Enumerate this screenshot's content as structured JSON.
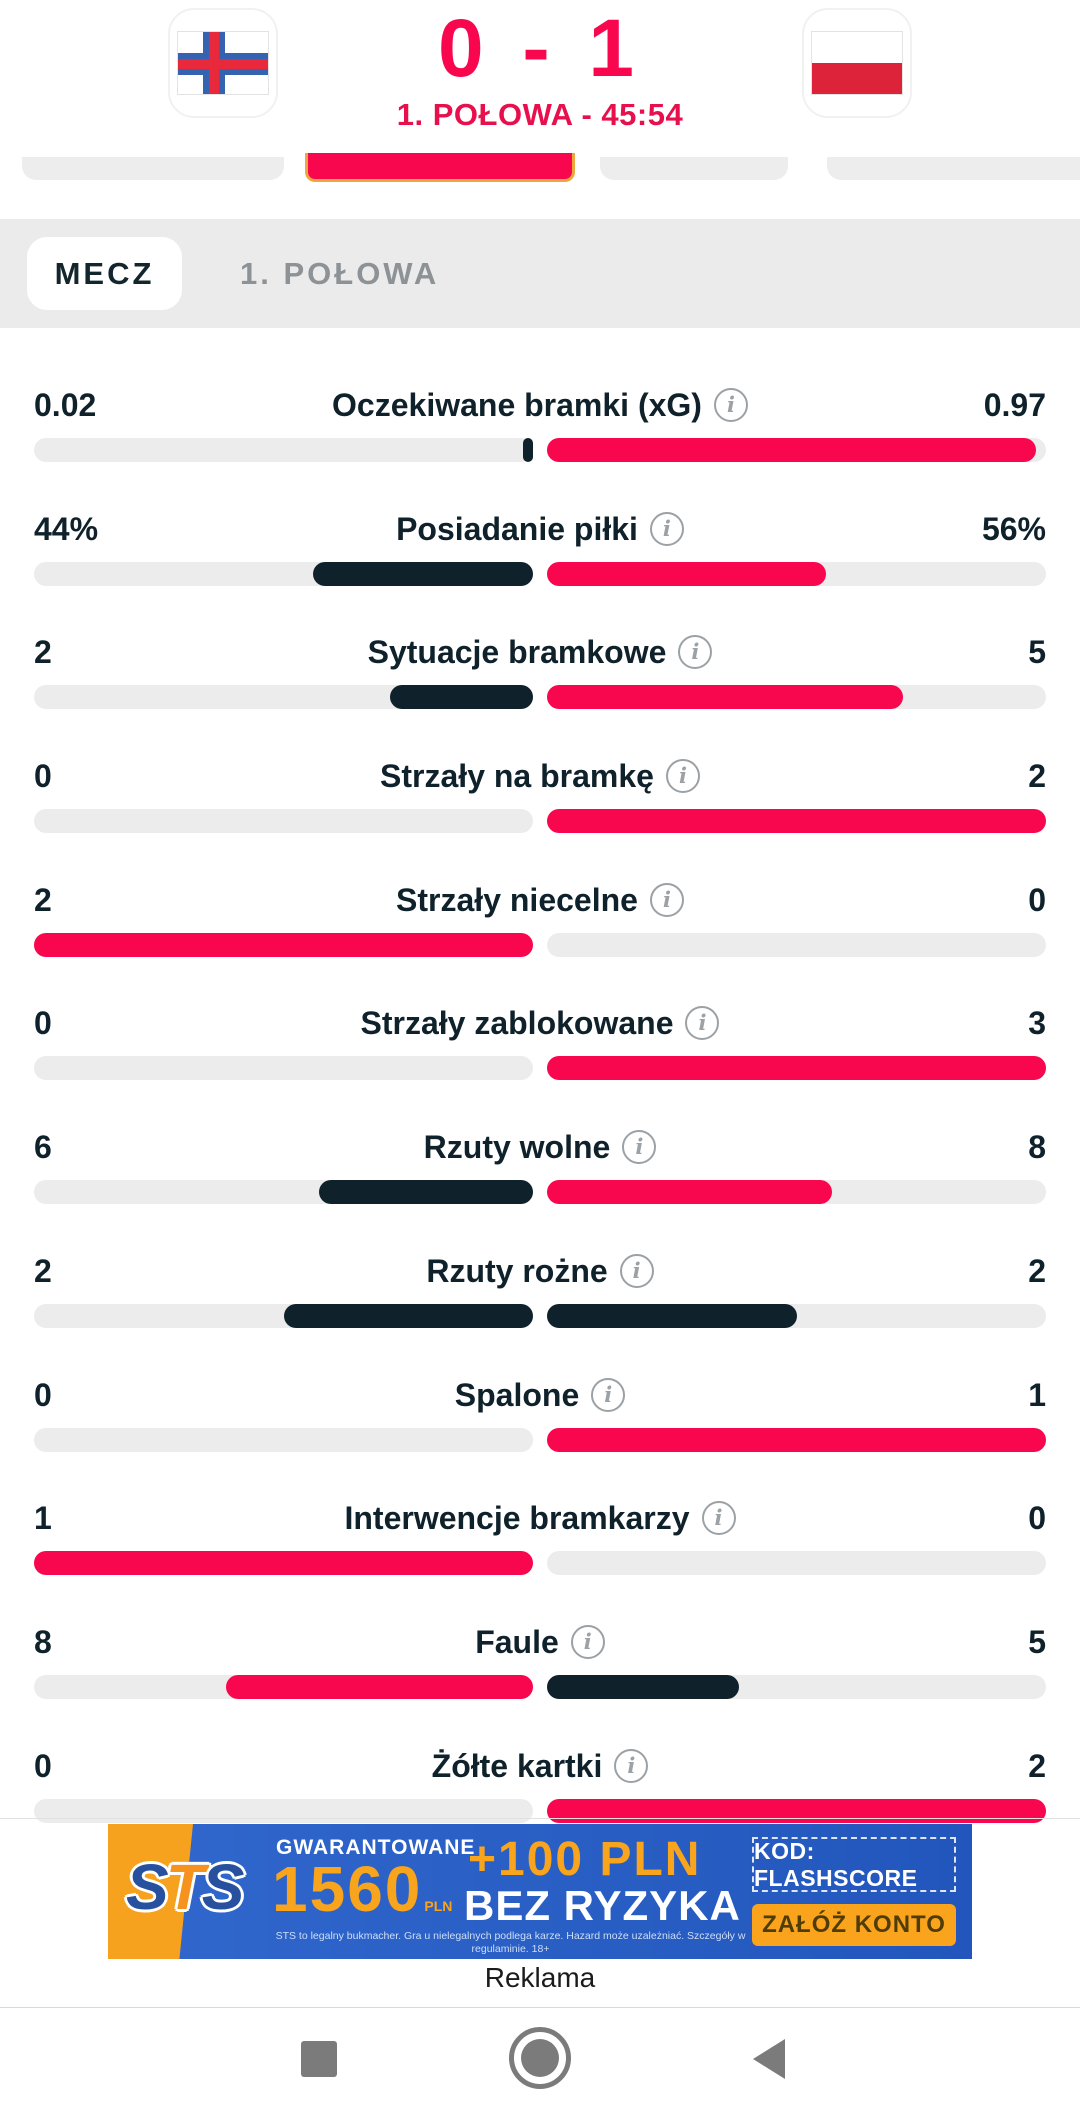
{
  "colors": {
    "accent_pink": "#f9074e",
    "dark_navy": "#0f212a",
    "bar_track": "#ececec",
    "tabbar_bg": "#ebebeb",
    "highlight_pill_border": "#eda73c",
    "ad_blue": "#2a62c8",
    "ad_orange": "#f7a21e"
  },
  "header": {
    "score": "0 - 1",
    "status": "1. POŁOWA - 45:54",
    "home_flag": "faroe-islands-flag",
    "away_flag": "poland-flag"
  },
  "tabs": {
    "items": [
      {
        "label": "MECZ",
        "selected": true
      },
      {
        "label": "1. POŁOWA",
        "selected": false
      }
    ]
  },
  "stats": {
    "rows": [
      {
        "label": "Oczekiwane bramki (xG)",
        "home": "0.02",
        "away": "0.97",
        "home_pct": 2,
        "away_pct": 98,
        "home_color": "#0f212a",
        "away_color": "#f9074e",
        "info": true
      },
      {
        "label": "Posiadanie piłki",
        "home": "44%",
        "away": "56%",
        "home_pct": 44,
        "away_pct": 56,
        "home_color": "#0f212a",
        "away_color": "#f9074e",
        "info": false
      },
      {
        "label": "Sytuacje bramkowe",
        "home": "2",
        "away": "5",
        "home_pct": 28.6,
        "away_pct": 71.4,
        "home_color": "#0f212a",
        "away_color": "#f9074e",
        "info": false
      },
      {
        "label": "Strzały na bramkę",
        "home": "0",
        "away": "2",
        "home_pct": 0,
        "away_pct": 100,
        "home_color": null,
        "away_color": "#f9074e",
        "info": false
      },
      {
        "label": "Strzały niecelne",
        "home": "2",
        "away": "0",
        "home_pct": 100,
        "away_pct": 0,
        "home_color": "#f9074e",
        "away_color": null,
        "info": false
      },
      {
        "label": "Strzały zablokowane",
        "home": "0",
        "away": "3",
        "home_pct": 0,
        "away_pct": 100,
        "home_color": null,
        "away_color": "#f9074e",
        "info": false
      },
      {
        "label": "Rzuty wolne",
        "home": "6",
        "away": "8",
        "home_pct": 42.9,
        "away_pct": 57.1,
        "home_color": "#0f212a",
        "away_color": "#f9074e",
        "info": false
      },
      {
        "label": "Rzuty rożne",
        "home": "2",
        "away": "2",
        "home_pct": 50,
        "away_pct": 50,
        "home_color": "#0f212a",
        "away_color": "#0f212a",
        "info": false
      },
      {
        "label": "Spalone",
        "home": "0",
        "away": "1",
        "home_pct": 0,
        "away_pct": 100,
        "home_color": null,
        "away_color": "#f9074e",
        "info": false
      },
      {
        "label": "Interwencje bramkarzy",
        "home": "1",
        "away": "0",
        "home_pct": 100,
        "away_pct": 0,
        "home_color": "#f9074e",
        "away_color": null,
        "info": false
      },
      {
        "label": "Faule",
        "home": "8",
        "away": "5",
        "home_pct": 61.5,
        "away_pct": 38.5,
        "home_color": "#f9074e",
        "away_color": "#0f212a",
        "info": false
      },
      {
        "label": "Żółte kartki",
        "home": "0",
        "away": "2",
        "home_pct": 0,
        "away_pct": 100,
        "home_color": null,
        "away_color": "#f9074e",
        "info": false
      }
    ]
  },
  "ad": {
    "brand": "STS",
    "line1": "GWARANTOWANE",
    "amount": "1560",
    "amount_currency": "PLN",
    "bonus": "+100 PLN",
    "bonus_sub": "BEZ RYZYKA",
    "code": "KOD: FLASHSCORE",
    "cta": "ZAŁÓŻ KONTO",
    "disclaimer": "STS to legalny bukmacher. Gra u nielegalnych podlega karze. Hazard może uzależniać. Szczegóły w regulaminie. 18+",
    "section_label": "Reklama"
  },
  "navbar": {
    "recents": "recents-square",
    "home": "home-circle",
    "back": "back-triangle"
  }
}
